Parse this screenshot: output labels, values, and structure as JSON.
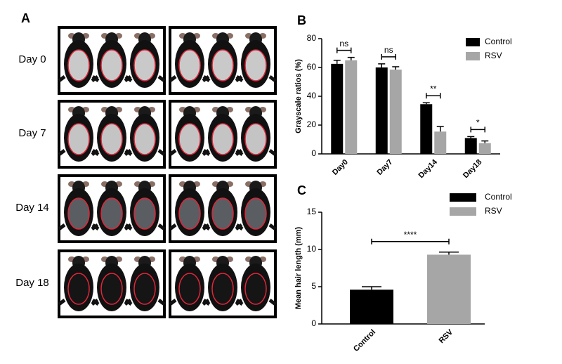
{
  "panel_a": {
    "label": "A",
    "rows": [
      "Day 0",
      "Day 7",
      "Day 14",
      "Day 18"
    ]
  },
  "chart_data": [
    {
      "type": "bar",
      "panel": "B",
      "y_label": "Grayscale ratios (%)",
      "categories": [
        "Day0",
        "Day7",
        "Day14",
        "Day18"
      ],
      "series": [
        {
          "name": "Control",
          "color": "#000000",
          "values": [
            62.5,
            60,
            34.5,
            11
          ],
          "errors": [
            2.5,
            2.5,
            1,
            1
          ]
        },
        {
          "name": "RSV",
          "color": "#a6a6a6",
          "values": [
            65,
            58.5,
            15.5,
            7.5
          ],
          "errors": [
            2,
            2,
            3.5,
            1.5
          ]
        }
      ],
      "annotations": [
        "ns",
        "ns",
        "**",
        "*"
      ],
      "ylim": [
        0,
        80
      ],
      "yticks": [
        0,
        20,
        40,
        60,
        80
      ]
    },
    {
      "type": "bar",
      "panel": "C",
      "y_label": "Mean hair length (mm)",
      "categories": [
        "Control",
        "RSV"
      ],
      "values": [
        4.6,
        9.3
      ],
      "errors": [
        0.4,
        0.35
      ],
      "colors": [
        "#000000",
        "#a6a6a6"
      ],
      "legend": [
        "Control",
        "RSV"
      ],
      "annotation": "****",
      "ylim": [
        0,
        15
      ],
      "yticks": [
        0,
        5,
        10,
        15
      ]
    }
  ]
}
